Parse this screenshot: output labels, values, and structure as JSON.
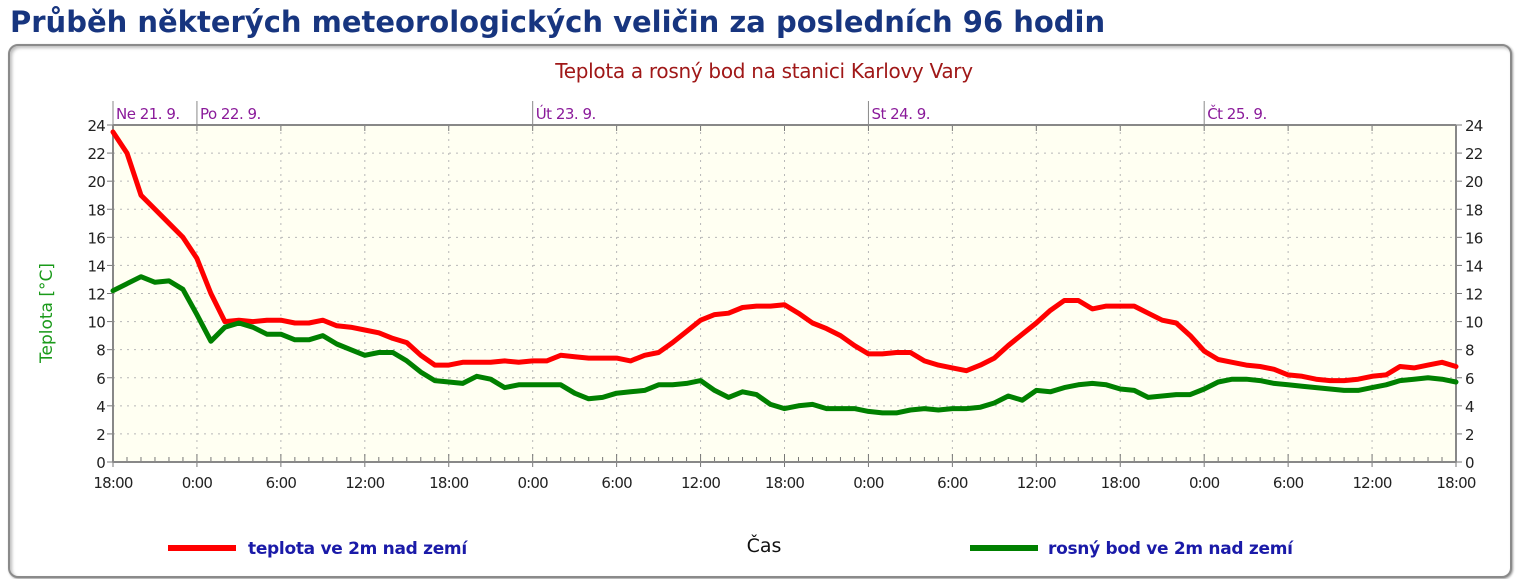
{
  "page_title": "Průběh některých meteorologických veličin za posledních 96 hodin",
  "chart_data": {
    "type": "line",
    "title": "Teplota a rosný bod na stanici Karlovy Vary",
    "xlabel": "Čas",
    "ylabel": "Teplota [°C]",
    "ylim": [
      0,
      24
    ],
    "yticks": [
      0,
      2,
      4,
      6,
      8,
      10,
      12,
      14,
      16,
      18,
      20,
      22,
      24
    ],
    "xlim_hours": [
      0,
      96
    ],
    "x_unit": "hours since Ne 21. 9. 18:00",
    "xtick_labels": [
      "18:00",
      "0:00",
      "6:00",
      "12:00",
      "18:00",
      "0:00",
      "6:00",
      "12:00",
      "18:00",
      "0:00",
      "6:00",
      "12:00",
      "18:00",
      "0:00",
      "6:00",
      "12:00",
      "18:00"
    ],
    "day_labels": [
      {
        "label": "Ne 21. 9.",
        "hour": 0
      },
      {
        "label": "Po 22. 9.",
        "hour": 6
      },
      {
        "label": "Út 23. 9.",
        "hour": 30
      },
      {
        "label": "St 24. 9.",
        "hour": 54
      },
      {
        "label": "Čt 25. 9.",
        "hour": 78
      }
    ],
    "grid": true,
    "legend_position": "bottom",
    "series": [
      {
        "name": "teplota ve 2m nad zemí",
        "color": "#ff0000",
        "values": [
          23.5,
          22,
          19,
          18,
          17,
          16,
          14.5,
          12,
          10,
          10.1,
          10,
          10.1,
          10.1,
          9.9,
          9.9,
          10.1,
          9.7,
          9.6,
          9.4,
          9.2,
          8.8,
          8.5,
          7.6,
          6.9,
          6.9,
          7.1,
          7.1,
          7.1,
          7.2,
          7.1,
          7.2,
          7.2,
          7.6,
          7.5,
          7.4,
          7.4,
          7.4,
          7.2,
          7.6,
          7.8,
          8.5,
          9.3,
          10.1,
          10.5,
          10.6,
          11.0,
          11.1,
          11.1,
          11.2,
          10.6,
          9.9,
          9.5,
          9.0,
          8.3,
          7.7,
          7.7,
          7.8,
          7.8,
          7.2,
          6.9,
          6.7,
          6.5,
          6.9,
          7.4,
          8.3,
          9.1,
          9.9,
          10.8,
          11.5,
          11.5,
          10.9,
          11.1,
          11.1,
          11.1,
          10.6,
          10.1,
          9.9,
          9.0,
          7.9,
          7.3,
          7.1,
          6.9,
          6.8,
          6.6,
          6.2,
          6.1,
          5.9,
          5.8,
          5.8,
          5.9,
          6.1,
          6.2,
          6.8,
          6.7,
          6.9,
          7.1,
          6.8
        ]
      },
      {
        "name": "rosný bod ve 2m nad zemí",
        "color": "#008000",
        "values": [
          12.2,
          12.7,
          13.2,
          12.8,
          12.9,
          12.3,
          10.5,
          8.6,
          9.6,
          9.9,
          9.6,
          9.1,
          9.1,
          8.7,
          8.7,
          9.0,
          8.4,
          8.0,
          7.6,
          7.8,
          7.8,
          7.2,
          6.4,
          5.8,
          5.7,
          5.6,
          6.1,
          5.9,
          5.3,
          5.5,
          5.5,
          5.5,
          5.5,
          4.9,
          4.5,
          4.6,
          4.9,
          5.0,
          5.1,
          5.5,
          5.5,
          5.6,
          5.8,
          5.1,
          4.6,
          5.0,
          4.8,
          4.1,
          3.8,
          4.0,
          4.1,
          3.8,
          3.8,
          3.8,
          3.6,
          3.5,
          3.5,
          3.7,
          3.8,
          3.7,
          3.8,
          3.8,
          3.9,
          4.2,
          4.7,
          4.4,
          5.1,
          5.0,
          5.3,
          5.5,
          5.6,
          5.5,
          5.2,
          5.1,
          4.6,
          4.7,
          4.8,
          4.8,
          5.2,
          5.7,
          5.9,
          5.9,
          5.8,
          5.6,
          5.5,
          5.4,
          5.3,
          5.2,
          5.1,
          5.1,
          5.3,
          5.5,
          5.8,
          5.9,
          6.0,
          5.9,
          5.7
        ]
      }
    ]
  }
}
